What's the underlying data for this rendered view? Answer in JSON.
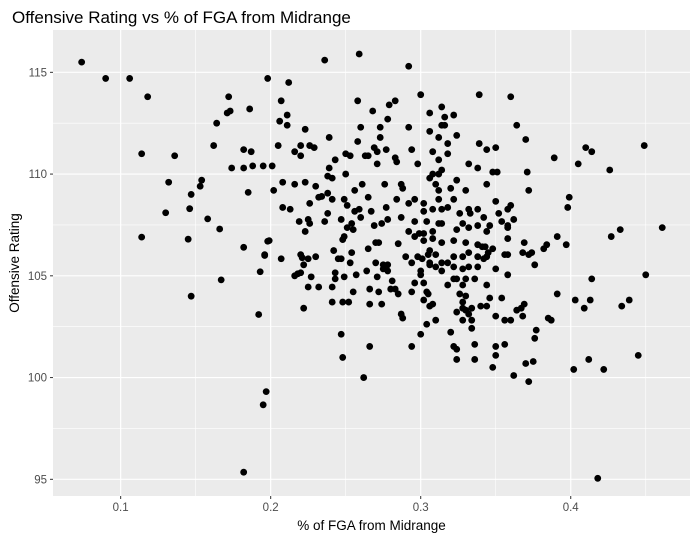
{
  "chart_data": {
    "type": "scatter",
    "title": "Offensive Rating vs % of FGA from Midrange",
    "xlabel": "% of FGA from Midrange",
    "ylabel": "Offensive Rating",
    "xlim": [
      0.0549,
      0.4795
    ],
    "ylim": [
      94.18,
      117.08
    ],
    "xticks": [
      0.1,
      0.2,
      0.3,
      0.4
    ],
    "xtick_labels": [
      "0.1",
      "0.2",
      "0.3",
      "0.4"
    ],
    "yticks": [
      95,
      100,
      105,
      110,
      115
    ],
    "ytick_labels": [
      "95",
      "100",
      "105",
      "110",
      "115"
    ],
    "grid": true,
    "background": "#ebebeb",
    "point_color": "#000000",
    "points": [
      [
        0.074,
        115.5
      ],
      [
        0.09,
        114.7
      ],
      [
        0.106,
        114.7
      ],
      [
        0.118,
        113.8
      ],
      [
        0.172,
        113.8
      ],
      [
        0.186,
        113.2
      ],
      [
        0.171,
        113.0
      ],
      [
        0.173,
        113.1
      ],
      [
        0.164,
        112.5
      ],
      [
        0.162,
        111.4
      ],
      [
        0.182,
        111.2
      ],
      [
        0.187,
        111.1
      ],
      [
        0.114,
        111.0
      ],
      [
        0.136,
        110.9
      ],
      [
        0.174,
        110.3
      ],
      [
        0.182,
        110.3
      ],
      [
        0.188,
        110.4
      ],
      [
        0.195,
        110.4
      ],
      [
        0.132,
        109.6
      ],
      [
        0.154,
        109.7
      ],
      [
        0.153,
        109.4
      ],
      [
        0.198,
        114.7
      ],
      [
        0.236,
        115.6
      ],
      [
        0.259,
        115.9
      ],
      [
        0.292,
        115.3
      ],
      [
        0.212,
        114.5
      ],
      [
        0.207,
        113.6
      ],
      [
        0.258,
        113.6
      ],
      [
        0.3,
        113.9
      ],
      [
        0.339,
        113.9
      ],
      [
        0.211,
        112.9
      ],
      [
        0.206,
        112.6
      ],
      [
        0.211,
        112.4
      ],
      [
        0.268,
        113.1
      ],
      [
        0.279,
        113.4
      ],
      [
        0.283,
        113.6
      ],
      [
        0.278,
        112.7
      ],
      [
        0.26,
        112.3
      ],
      [
        0.273,
        112.3
      ],
      [
        0.292,
        112.3
      ],
      [
        0.306,
        113.0
      ],
      [
        0.314,
        113.3
      ],
      [
        0.316,
        112.8
      ],
      [
        0.322,
        112.9
      ],
      [
        0.314,
        112.4
      ],
      [
        0.316,
        112.4
      ],
      [
        0.223,
        112.2
      ],
      [
        0.239,
        111.8
      ],
      [
        0.258,
        111.6
      ],
      [
        0.273,
        111.8
      ],
      [
        0.306,
        112.1
      ],
      [
        0.312,
        111.8
      ],
      [
        0.324,
        111.9
      ],
      [
        0.318,
        111.5
      ],
      [
        0.339,
        111.5
      ],
      [
        0.205,
        111.4
      ],
      [
        0.22,
        111.4
      ],
      [
        0.226,
        111.4
      ],
      [
        0.229,
        111.3
      ],
      [
        0.216,
        111.1
      ],
      [
        0.22,
        110.9
      ],
      [
        0.243,
        110.7
      ],
      [
        0.25,
        111.0
      ],
      [
        0.253,
        110.9
      ],
      [
        0.263,
        110.9
      ],
      [
        0.265,
        110.9
      ],
      [
        0.269,
        111.3
      ],
      [
        0.271,
        111.1
      ],
      [
        0.277,
        111.2
      ],
      [
        0.271,
        110.5
      ],
      [
        0.283,
        110.8
      ],
      [
        0.284,
        110.6
      ],
      [
        0.294,
        111.2
      ],
      [
        0.298,
        110.5
      ],
      [
        0.308,
        111.1
      ],
      [
        0.312,
        110.7
      ],
      [
        0.318,
        111.0
      ],
      [
        0.332,
        110.5
      ],
      [
        0.338,
        110.3
      ],
      [
        0.239,
        110.3
      ],
      [
        0.238,
        109.9
      ],
      [
        0.241,
        109.8
      ],
      [
        0.25,
        110.0
      ],
      [
        0.306,
        109.8
      ],
      [
        0.308,
        110.0
      ],
      [
        0.312,
        110.0
      ],
      [
        0.314,
        110.2
      ],
      [
        0.324,
        109.7
      ],
      [
        0.201,
        110.4
      ],
      [
        0.208,
        109.6
      ],
      [
        0.216,
        109.5
      ],
      [
        0.223,
        109.6
      ],
      [
        0.23,
        109.4
      ],
      [
        0.261,
        109.5
      ],
      [
        0.276,
        109.5
      ],
      [
        0.287,
        109.5
      ],
      [
        0.288,
        109.3
      ],
      [
        0.31,
        109.5
      ],
      [
        0.202,
        109.2
      ],
      [
        0.256,
        109.2
      ],
      [
        0.312,
        109.2
      ],
      [
        0.32,
        109.3
      ],
      [
        0.33,
        109.2
      ],
      [
        0.36,
        113.8
      ],
      [
        0.364,
        112.4
      ],
      [
        0.37,
        111.7
      ],
      [
        0.344,
        111.2
      ],
      [
        0.35,
        111.3
      ],
      [
        0.389,
        110.8
      ],
      [
        0.41,
        111.3
      ],
      [
        0.414,
        111.1
      ],
      [
        0.449,
        111.4
      ],
      [
        0.405,
        110.5
      ],
      [
        0.426,
        110.2
      ],
      [
        0.348,
        110.1
      ],
      [
        0.351,
        110.1
      ],
      [
        0.371,
        110.1
      ],
      [
        0.344,
        109.5
      ],
      [
        0.372,
        109.2
      ],
      [
        0.147,
        109.0
      ],
      [
        0.146,
        108.3
      ],
      [
        0.13,
        108.1
      ],
      [
        0.185,
        109.1
      ],
      [
        0.158,
        107.8
      ],
      [
        0.166,
        107.3
      ],
      [
        0.114,
        106.9
      ],
      [
        0.145,
        106.8
      ],
      [
        0.182,
        106.4
      ],
      [
        0.196,
        106.0
      ],
      [
        0.193,
        105.2
      ],
      [
        0.167,
        104.8
      ],
      [
        0.147,
        104.0
      ],
      [
        0.192,
        103.1
      ],
      [
        0.198,
        106.7
      ],
      [
        0.238,
        109.06
      ],
      [
        0.232,
        108.86
      ],
      [
        0.234,
        108.9
      ],
      [
        0.241,
        108.76
      ],
      [
        0.249,
        108.76
      ],
      [
        0.265,
        108.86
      ],
      [
        0.284,
        108.76
      ],
      [
        0.296,
        108.76
      ],
      [
        0.302,
        108.56
      ],
      [
        0.312,
        108.76
      ],
      [
        0.322,
        108.76
      ],
      [
        0.208,
        108.36
      ],
      [
        0.213,
        108.27
      ],
      [
        0.226,
        108.56
      ],
      [
        0.251,
        108.46
      ],
      [
        0.256,
        108.17
      ],
      [
        0.259,
        108.27
      ],
      [
        0.267,
        108.17
      ],
      [
        0.277,
        108.36
      ],
      [
        0.292,
        108.56
      ],
      [
        0.302,
        108.17
      ],
      [
        0.308,
        108.27
      ],
      [
        0.314,
        108.27
      ],
      [
        0.318,
        108.36
      ],
      [
        0.326,
        108.07
      ],
      [
        0.332,
        108.27
      ],
      [
        0.333,
        108.07
      ],
      [
        0.219,
        107.67
      ],
      [
        0.225,
        107.77
      ],
      [
        0.226,
        107.57
      ],
      [
        0.236,
        107.67
      ],
      [
        0.238,
        108.07
      ],
      [
        0.247,
        107.77
      ],
      [
        0.26,
        107.87
      ],
      [
        0.269,
        107.47
      ],
      [
        0.274,
        107.57
      ],
      [
        0.278,
        107.77
      ],
      [
        0.287,
        107.87
      ],
      [
        0.296,
        107.67
      ],
      [
        0.304,
        107.67
      ],
      [
        0.312,
        107.57
      ],
      [
        0.314,
        107.57
      ],
      [
        0.328,
        107.57
      ],
      [
        0.332,
        107.37
      ],
      [
        0.338,
        107.47
      ],
      [
        0.223,
        107.18
      ],
      [
        0.251,
        107.37
      ],
      [
        0.254,
        107.57
      ],
      [
        0.255,
        107.27
      ],
      [
        0.292,
        107.18
      ],
      [
        0.296,
        106.93
      ],
      [
        0.299,
        107.08
      ],
      [
        0.302,
        107.08
      ],
      [
        0.308,
        107.18
      ],
      [
        0.324,
        107.27
      ],
      [
        0.199,
        106.73
      ],
      [
        0.248,
        106.78
      ],
      [
        0.249,
        106.93
      ],
      [
        0.27,
        106.63
      ],
      [
        0.272,
        106.63
      ],
      [
        0.285,
        106.58
      ],
      [
        0.302,
        106.73
      ],
      [
        0.308,
        106.83
      ],
      [
        0.314,
        106.63
      ],
      [
        0.322,
        106.73
      ],
      [
        0.33,
        106.63
      ],
      [
        0.338,
        106.53
      ],
      [
        0.265,
        106.33
      ],
      [
        0.242,
        106.24
      ],
      [
        0.254,
        106.14
      ],
      [
        0.306,
        106.24
      ],
      [
        0.31,
        106.04
      ],
      [
        0.332,
        106.14
      ],
      [
        0.196,
        106.04
      ],
      [
        0.207,
        105.84
      ],
      [
        0.22,
        106.04
      ],
      [
        0.221,
        105.89
      ],
      [
        0.225,
        105.84
      ],
      [
        0.23,
        105.94
      ],
      [
        0.245,
        105.84
      ],
      [
        0.247,
        105.84
      ],
      [
        0.253,
        105.64
      ],
      [
        0.29,
        105.94
      ],
      [
        0.298,
        105.94
      ],
      [
        0.301,
        105.84
      ],
      [
        0.305,
        106.04
      ],
      [
        0.294,
        105.64
      ],
      [
        0.27,
        105.64
      ],
      [
        0.275,
        105.54
      ],
      [
        0.278,
        105.54
      ],
      [
        0.275,
        105.34
      ],
      [
        0.278,
        105.24
      ],
      [
        0.306,
        105.64
      ],
      [
        0.306,
        105.54
      ],
      [
        0.31,
        105.44
      ],
      [
        0.314,
        105.64
      ],
      [
        0.318,
        105.64
      ],
      [
        0.322,
        105.94
      ],
      [
        0.328,
        105.94
      ],
      [
        0.322,
        105.44
      ],
      [
        0.328,
        105.34
      ],
      [
        0.332,
        105.44
      ],
      [
        0.338,
        105.94
      ],
      [
        0.338,
        105.44
      ],
      [
        0.222,
        105.54
      ],
      [
        0.216,
        105.0
      ],
      [
        0.218,
        105.1
      ],
      [
        0.22,
        105.15
      ],
      [
        0.227,
        104.95
      ],
      [
        0.243,
        105.15
      ],
      [
        0.243,
        104.85
      ],
      [
        0.249,
        104.95
      ],
      [
        0.257,
        105.05
      ],
      [
        0.264,
        105.24
      ],
      [
        0.271,
        104.95
      ],
      [
        0.3,
        105.24
      ],
      [
        0.3,
        105.05
      ],
      [
        0.314,
        105.24
      ],
      [
        0.225,
        104.45
      ],
      [
        0.232,
        104.45
      ],
      [
        0.241,
        104.45
      ],
      [
        0.255,
        104.21
      ],
      [
        0.266,
        104.35
      ],
      [
        0.272,
        104.21
      ],
      [
        0.281,
        104.75
      ],
      [
        0.28,
        104.35
      ],
      [
        0.283,
        104.35
      ],
      [
        0.285,
        104.11
      ],
      [
        0.294,
        104.21
      ],
      [
        0.296,
        104.65
      ],
      [
        0.302,
        104.65
      ],
      [
        0.304,
        104.21
      ],
      [
        0.305,
        104.11
      ],
      [
        0.302,
        103.81
      ],
      [
        0.322,
        104.85
      ],
      [
        0.324,
        104.85
      ],
      [
        0.318,
        104.55
      ],
      [
        0.328,
        104.55
      ],
      [
        0.33,
        104.85
      ],
      [
        0.336,
        104.85
      ],
      [
        0.222,
        103.41
      ],
      [
        0.241,
        103.71
      ],
      [
        0.248,
        103.71
      ],
      [
        0.252,
        103.71
      ],
      [
        0.266,
        103.61
      ],
      [
        0.274,
        103.61
      ],
      [
        0.306,
        103.51
      ],
      [
        0.308,
        103.61
      ],
      [
        0.326,
        104.11
      ],
      [
        0.33,
        104.01
      ],
      [
        0.328,
        103.71
      ],
      [
        0.328,
        103.41
      ],
      [
        0.324,
        103.22
      ],
      [
        0.33,
        103.31
      ],
      [
        0.334,
        103.41
      ],
      [
        0.332,
        103.12
      ],
      [
        0.34,
        103.51
      ],
      [
        0.287,
        103.12
      ],
      [
        0.288,
        102.92
      ],
      [
        0.304,
        102.62
      ],
      [
        0.31,
        102.82
      ],
      [
        0.328,
        102.82
      ],
      [
        0.334,
        102.82
      ],
      [
        0.334,
        102.42
      ],
      [
        0.247,
        102.13
      ],
      [
        0.3,
        102.13
      ],
      [
        0.32,
        102.23
      ],
      [
        0.266,
        101.53
      ],
      [
        0.294,
        101.53
      ],
      [
        0.322,
        101.53
      ],
      [
        0.336,
        101.63
      ],
      [
        0.399,
        108.86
      ],
      [
        0.398,
        108.36
      ],
      [
        0.35,
        108.66
      ],
      [
        0.36,
        108.46
      ],
      [
        0.358,
        108.27
      ],
      [
        0.338,
        108.27
      ],
      [
        0.352,
        108.07
      ],
      [
        0.342,
        107.87
      ],
      [
        0.362,
        107.77
      ],
      [
        0.354,
        107.67
      ],
      [
        0.346,
        107.47
      ],
      [
        0.358,
        107.47
      ],
      [
        0.358,
        107.37
      ],
      [
        0.344,
        107.18
      ],
      [
        0.433,
        107.27
      ],
      [
        0.427,
        106.93
      ],
      [
        0.461,
        107.37
      ],
      [
        0.391,
        106.93
      ],
      [
        0.358,
        106.83
      ],
      [
        0.369,
        106.63
      ],
      [
        0.397,
        106.53
      ],
      [
        0.384,
        106.53
      ],
      [
        0.382,
        106.33
      ],
      [
        0.341,
        106.43
      ],
      [
        0.343,
        106.43
      ],
      [
        0.348,
        106.33
      ],
      [
        0.345,
        106.14
      ],
      [
        0.368,
        106.14
      ],
      [
        0.372,
        106.04
      ],
      [
        0.374,
        106.14
      ],
      [
        0.356,
        106.04
      ],
      [
        0.358,
        106.04
      ],
      [
        0.344,
        105.94
      ],
      [
        0.342,
        105.84
      ],
      [
        0.376,
        105.54
      ],
      [
        0.35,
        105.34
      ],
      [
        0.358,
        105.05
      ],
      [
        0.45,
        105.05
      ],
      [
        0.414,
        104.85
      ],
      [
        0.344,
        104.55
      ],
      [
        0.391,
        104.11
      ],
      [
        0.346,
        103.91
      ],
      [
        0.354,
        103.91
      ],
      [
        0.403,
        103.81
      ],
      [
        0.413,
        103.81
      ],
      [
        0.439,
        103.81
      ],
      [
        0.344,
        103.51
      ],
      [
        0.434,
        103.51
      ],
      [
        0.409,
        103.41
      ],
      [
        0.369,
        103.61
      ],
      [
        0.367,
        103.41
      ],
      [
        0.364,
        103.31
      ],
      [
        0.35,
        103.02
      ],
      [
        0.368,
        103.02
      ],
      [
        0.356,
        102.82
      ],
      [
        0.36,
        102.82
      ],
      [
        0.385,
        102.92
      ],
      [
        0.387,
        102.82
      ],
      [
        0.377,
        102.33
      ],
      [
        0.376,
        101.93
      ],
      [
        0.35,
        101.53
      ],
      [
        0.356,
        101.63
      ],
      [
        0.197,
        99.31
      ],
      [
        0.195,
        98.66
      ],
      [
        0.182,
        95.35
      ],
      [
        0.248,
        100.99
      ],
      [
        0.262,
        100.0
      ],
      [
        0.324,
        101.39
      ],
      [
        0.324,
        100.89
      ],
      [
        0.336,
        100.89
      ],
      [
        0.35,
        101.09
      ],
      [
        0.348,
        100.5
      ],
      [
        0.362,
        100.1
      ],
      [
        0.37,
        100.69
      ],
      [
        0.375,
        100.79
      ],
      [
        0.372,
        99.8
      ],
      [
        0.402,
        100.4
      ],
      [
        0.412,
        100.89
      ],
      [
        0.422,
        100.4
      ],
      [
        0.445,
        101.09
      ],
      [
        0.418,
        95.05
      ]
    ]
  }
}
